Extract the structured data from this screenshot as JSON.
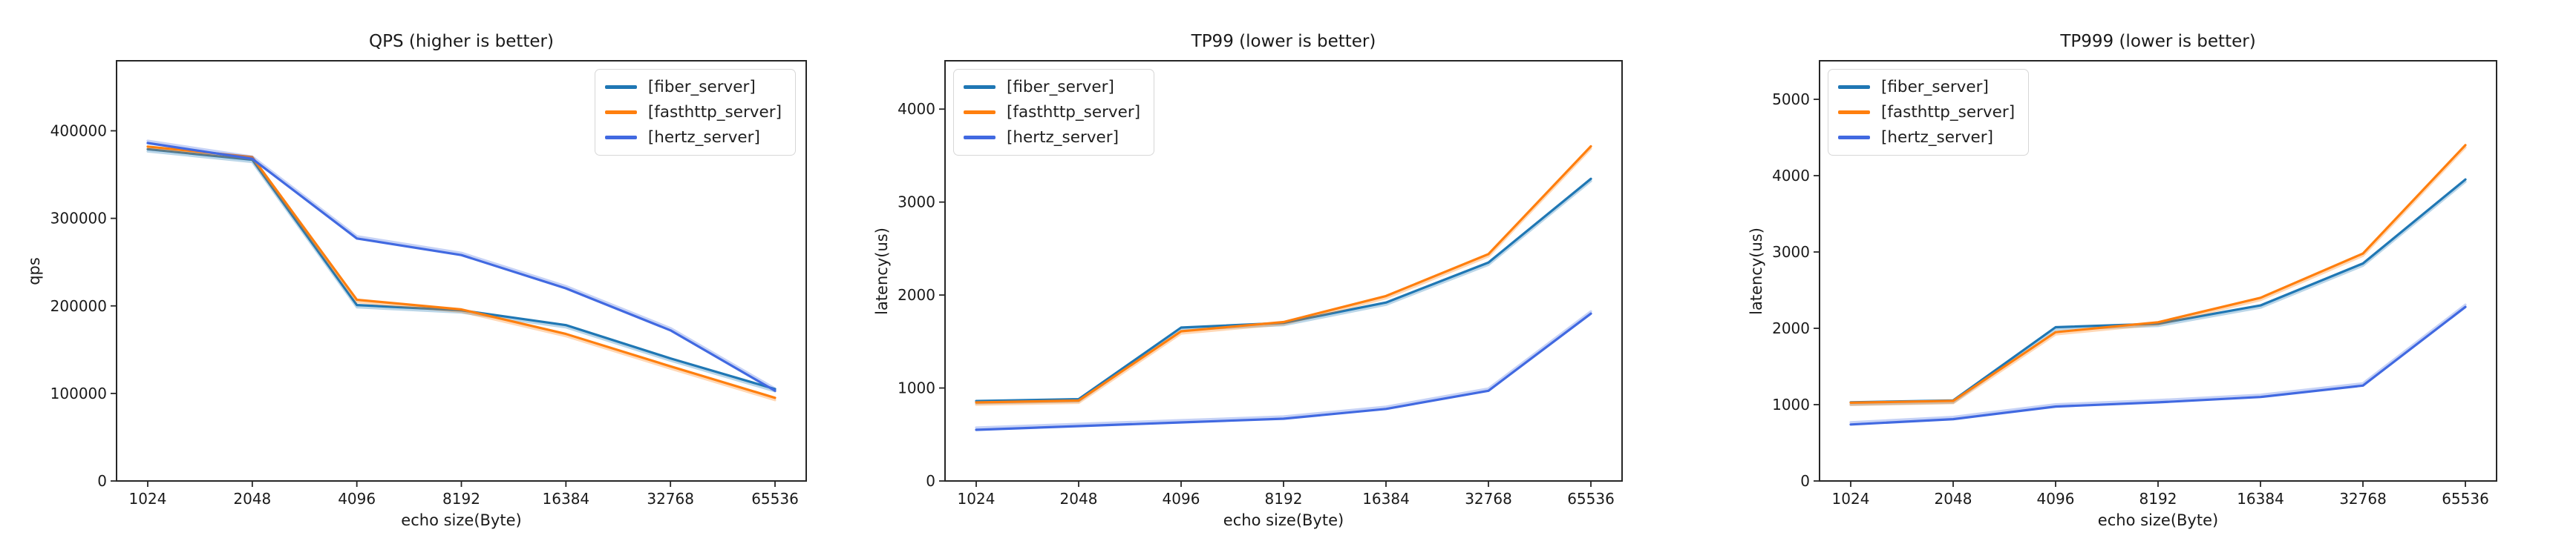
{
  "figure": {
    "background": "#ffffff",
    "text_color": "#1a1a1a",
    "axis_color": "#262626"
  },
  "series_colors": {
    "fiber_server": "#1f77b4",
    "fasthttp_server": "#ff7f0e",
    "hertz_server": "#4169e1"
  },
  "chart_data": [
    {
      "type": "line",
      "title": "QPS (higher is better)",
      "xlabel": "echo size(Byte)",
      "ylabel": "qps",
      "categories": [
        "1024",
        "2048",
        "4096",
        "8192",
        "16384",
        "32768",
        "65536"
      ],
      "yticks": [
        0,
        100000,
        200000,
        300000,
        400000
      ],
      "ylim": [
        0,
        480000
      ],
      "grid": false,
      "legend_position": "top-right",
      "series": [
        {
          "name": "[fiber_server]",
          "color": "#1f77b4",
          "values": [
            379000,
            367000,
            201000,
            195000,
            178000,
            140000,
            105000
          ]
        },
        {
          "name": "[fasthttp_server]",
          "color": "#ff7f0e",
          "values": [
            382000,
            370000,
            207000,
            196000,
            168000,
            131000,
            95000
          ]
        },
        {
          "name": "[hertz_server]",
          "color": "#4169e1",
          "values": [
            386000,
            368000,
            277000,
            258000,
            220000,
            172000,
            103000
          ]
        }
      ]
    },
    {
      "type": "line",
      "title": "TP99 (lower is better)",
      "xlabel": "echo size(Byte)",
      "ylabel": "latency(us)",
      "categories": [
        "1024",
        "2048",
        "4096",
        "8192",
        "16384",
        "32768",
        "65536"
      ],
      "yticks": [
        0,
        1000,
        2000,
        3000,
        4000
      ],
      "ylim": [
        0,
        4520
      ],
      "grid": false,
      "legend_position": "top-left",
      "series": [
        {
          "name": "[fiber_server]",
          "color": "#1f77b4",
          "values": [
            860,
            880,
            1650,
            1700,
            1920,
            2350,
            3250
          ]
        },
        {
          "name": "[fasthttp_server]",
          "color": "#ff7f0e",
          "values": [
            845,
            865,
            1610,
            1710,
            1990,
            2440,
            3600
          ]
        },
        {
          "name": "[hertz_server]",
          "color": "#4169e1",
          "values": [
            550,
            590,
            630,
            670,
            775,
            970,
            1800
          ]
        }
      ]
    },
    {
      "type": "line",
      "title": "TP999 (lower is better)",
      "xlabel": "echo size(Byte)",
      "ylabel": "latency(us)",
      "categories": [
        "1024",
        "2048",
        "4096",
        "8192",
        "16384",
        "32768",
        "65536"
      ],
      "yticks": [
        0,
        1000,
        2000,
        3000,
        4000,
        5000
      ],
      "ylim": [
        0,
        5505
      ],
      "grid": false,
      "legend_position": "top-left",
      "series": [
        {
          "name": "[fiber_server]",
          "color": "#1f77b4",
          "values": [
            1030,
            1055,
            2015,
            2060,
            2300,
            2850,
            3950
          ]
        },
        {
          "name": "[fasthttp_server]",
          "color": "#ff7f0e",
          "values": [
            1025,
            1050,
            1950,
            2080,
            2400,
            2980,
            4400
          ]
        },
        {
          "name": "[hertz_server]",
          "color": "#4169e1",
          "values": [
            740,
            810,
            975,
            1030,
            1100,
            1250,
            2280
          ]
        }
      ]
    }
  ]
}
